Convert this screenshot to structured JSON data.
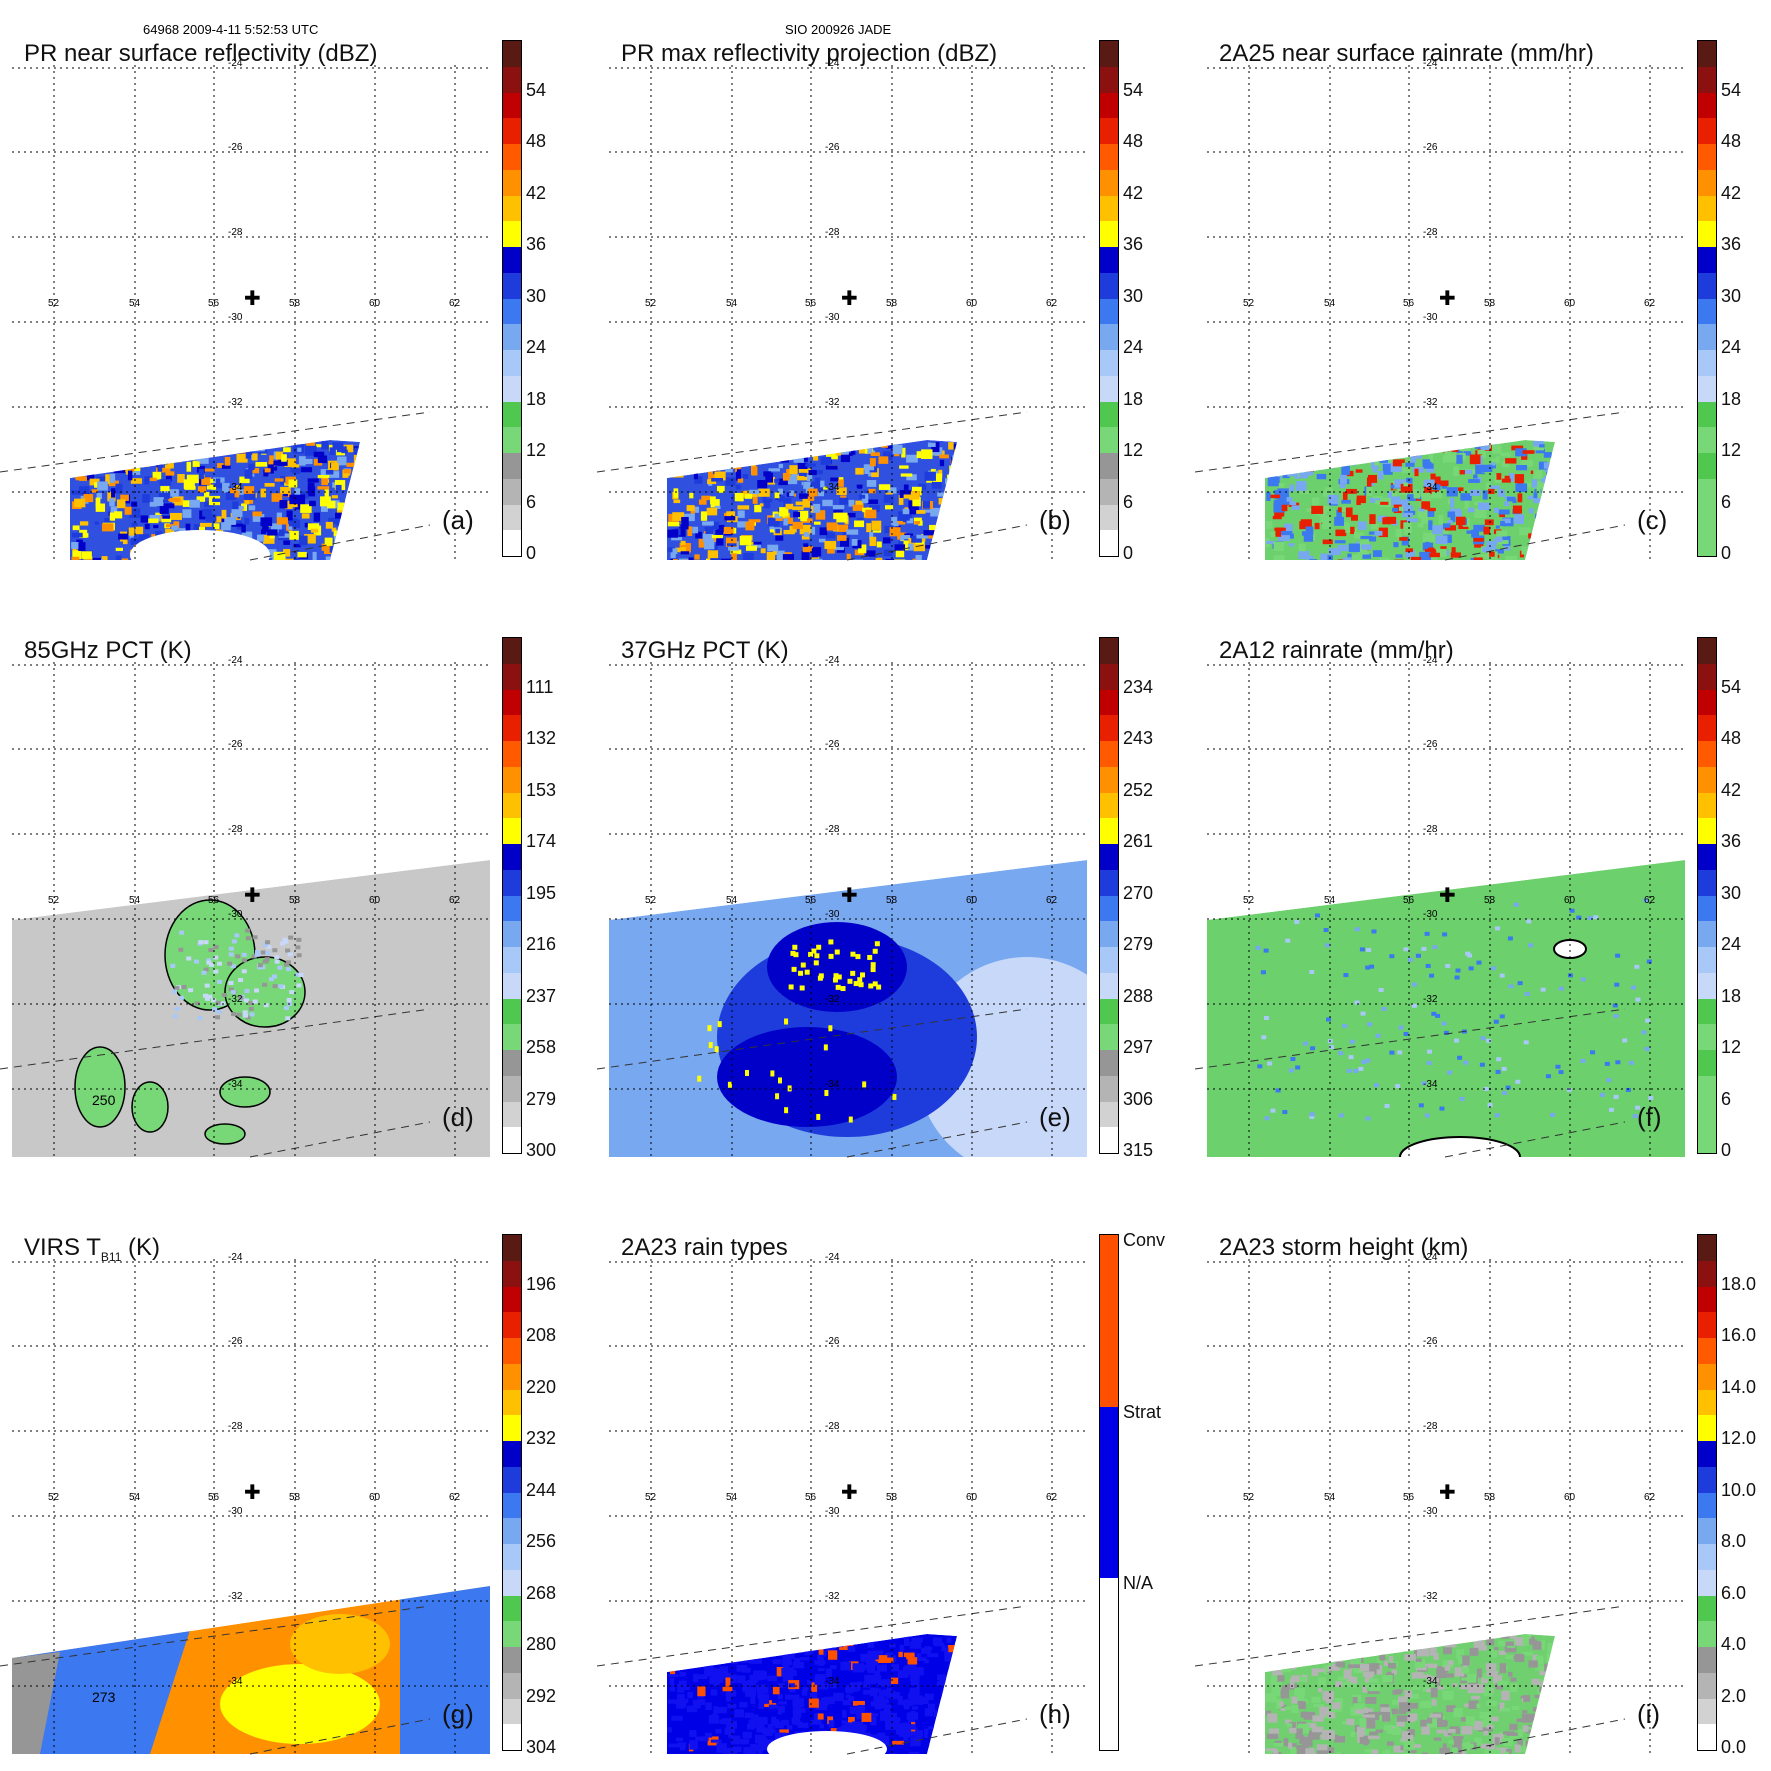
{
  "header": {
    "orbit_info": "64968 2009-4-11 5:52:53 UTC",
    "storm_info": "SIO 200926 JADE"
  },
  "lon_labels": [
    "52",
    "54",
    "56",
    "58",
    "60",
    "62"
  ],
  "lat_labels": [
    "-24",
    "-26",
    "-28",
    "-30",
    "-32",
    "-34"
  ],
  "center_marker": "✚",
  "panels": [
    {
      "id": "a",
      "title": "PR near surface reflectivity (dBZ)",
      "letter": "(a)",
      "swath": "pr",
      "palette": "refl",
      "colorbar": {
        "ticks": [
          "54",
          "48",
          "42",
          "36",
          "30",
          "24",
          "18",
          "12",
          "6",
          "0"
        ],
        "colors": [
          "#5a1a14",
          "#8b1010",
          "#c00000",
          "#e82000",
          "#ff5a00",
          "#ff9000",
          "#ffc000",
          "#ffff00",
          "#0000c8",
          "#1e3cdc",
          "#3c78f0",
          "#78a8f0",
          "#a8c8f8",
          "#c8d8f8",
          "#50c850",
          "#78d878",
          "#969696",
          "#b4b4b4",
          "#d2d2d2",
          "#ffffff"
        ]
      }
    },
    {
      "id": "b",
      "title": "PR max reflectivity projection (dBZ)",
      "letter": "(b)",
      "swath": "pr",
      "palette": "refl",
      "colorbar": {
        "ticks": [
          "54",
          "48",
          "42",
          "36",
          "30",
          "24",
          "18",
          "12",
          "6",
          "0"
        ],
        "colors": [
          "#5a1a14",
          "#8b1010",
          "#c00000",
          "#e82000",
          "#ff5a00",
          "#ff9000",
          "#ffc000",
          "#ffff00",
          "#0000c8",
          "#1e3cdc",
          "#3c78f0",
          "#78a8f0",
          "#a8c8f8",
          "#c8d8f8",
          "#50c850",
          "#78d878",
          "#969696",
          "#b4b4b4",
          "#d2d2d2",
          "#ffffff"
        ]
      }
    },
    {
      "id": "c",
      "title": "2A25 near surface rainrate (mm/hr)",
      "letter": "(c)",
      "swath": "pr",
      "palette": "rain",
      "colorbar": {
        "ticks": [
          "54",
          "48",
          "42",
          "36",
          "30",
          "24",
          "18",
          "12",
          "6",
          "0"
        ],
        "colors": [
          "#5a1a14",
          "#8b1010",
          "#c00000",
          "#e82000",
          "#ff5a00",
          "#ff9000",
          "#ffc000",
          "#ffff00",
          "#0000c8",
          "#1e3cdc",
          "#3c78f0",
          "#78a8f0",
          "#a8c8f8",
          "#c8d8f8",
          "#50c850",
          "#78d878",
          "#50c850",
          "#78d878",
          "#78d878",
          "#78d878"
        ]
      }
    },
    {
      "id": "d",
      "title": "85GHz PCT (K)",
      "letter": "(d)",
      "swath": "tmi",
      "palette": "pct85",
      "colorbar": {
        "ticks": [
          "111",
          "132",
          "153",
          "174",
          "195",
          "216",
          "237",
          "258",
          "279",
          "300"
        ],
        "colors": [
          "#5a1a14",
          "#8b1010",
          "#c00000",
          "#e82000",
          "#ff5a00",
          "#ff9000",
          "#ffc000",
          "#ffff00",
          "#0000c8",
          "#1e3cdc",
          "#3c78f0",
          "#78a8f0",
          "#a8c8f8",
          "#c8d8f8",
          "#50c850",
          "#78d878",
          "#969696",
          "#b4b4b4",
          "#d2d2d2",
          "#ffffff"
        ]
      },
      "contour_label": "250"
    },
    {
      "id": "e",
      "title": "37GHz PCT (K)",
      "letter": "(e)",
      "swath": "tmi",
      "palette": "pct37",
      "colorbar": {
        "ticks": [
          "234",
          "243",
          "252",
          "261",
          "270",
          "279",
          "288",
          "297",
          "306",
          "315"
        ],
        "colors": [
          "#5a1a14",
          "#8b1010",
          "#c00000",
          "#e82000",
          "#ff5a00",
          "#ff9000",
          "#ffc000",
          "#ffff00",
          "#0000c8",
          "#1e3cdc",
          "#3c78f0",
          "#78a8f0",
          "#a8c8f8",
          "#c8d8f8",
          "#50c850",
          "#78d878",
          "#969696",
          "#b4b4b4",
          "#d2d2d2",
          "#ffffff"
        ]
      }
    },
    {
      "id": "f",
      "title": "2A12 rainrate (mm/hr)",
      "letter": "(f)",
      "swath": "tmi",
      "palette": "rain2",
      "colorbar": {
        "ticks": [
          "54",
          "48",
          "42",
          "36",
          "30",
          "24",
          "18",
          "12",
          "6",
          "0"
        ],
        "colors": [
          "#5a1a14",
          "#8b1010",
          "#c00000",
          "#e82000",
          "#ff5a00",
          "#ff9000",
          "#ffc000",
          "#ffff00",
          "#0000c8",
          "#1e3cdc",
          "#3c78f0",
          "#78a8f0",
          "#a8c8f8",
          "#c8d8f8",
          "#50c850",
          "#78d878",
          "#50c850",
          "#78d878",
          "#78d878",
          "#78d878"
        ]
      }
    },
    {
      "id": "g",
      "title": "VIRS T",
      "title_sub": "B11",
      "title_tail": " (K)",
      "letter": "(g)",
      "swath": "virs",
      "palette": "virs",
      "colorbar": {
        "ticks": [
          "196",
          "208",
          "220",
          "232",
          "244",
          "256",
          "268",
          "280",
          "292",
          "304"
        ],
        "colors": [
          "#5a1a14",
          "#8b1010",
          "#c00000",
          "#e82000",
          "#ff5a00",
          "#ff9000",
          "#ffc000",
          "#ffff00",
          "#0000c8",
          "#1e3cdc",
          "#3c78f0",
          "#78a8f0",
          "#a8c8f8",
          "#c8d8f8",
          "#50c850",
          "#78d878",
          "#969696",
          "#b4b4b4",
          "#d2d2d2",
          "#ffffff"
        ]
      },
      "contour_label": "273"
    },
    {
      "id": "h",
      "title": "2A23 rain types",
      "letter": "(h)",
      "swath": "pr",
      "palette": "types",
      "colorbar": {
        "categorical": [
          "Conv",
          "Strat",
          "N/A"
        ],
        "cat_colors": [
          "#ff5000",
          "#0000e6",
          "#ffffff"
        ]
      }
    },
    {
      "id": "i",
      "title": "2A23 storm height (km)",
      "letter": "(i)",
      "swath": "pr",
      "palette": "height",
      "colorbar": {
        "ticks": [
          "18.0",
          "16.0",
          "14.0",
          "12.0",
          "10.0",
          "8.0",
          "6.0",
          "4.0",
          "2.0",
          "0.0"
        ],
        "colors": [
          "#5a1a14",
          "#8b1010",
          "#c00000",
          "#e82000",
          "#ff5a00",
          "#ff9000",
          "#ffc000",
          "#ffff00",
          "#0000c8",
          "#1e3cdc",
          "#3c78f0",
          "#78a8f0",
          "#a8c8f8",
          "#c8d8f8",
          "#50c850",
          "#78d878",
          "#969696",
          "#b4b4b4",
          "#d2d2d2",
          "#ffffff"
        ]
      }
    }
  ]
}
